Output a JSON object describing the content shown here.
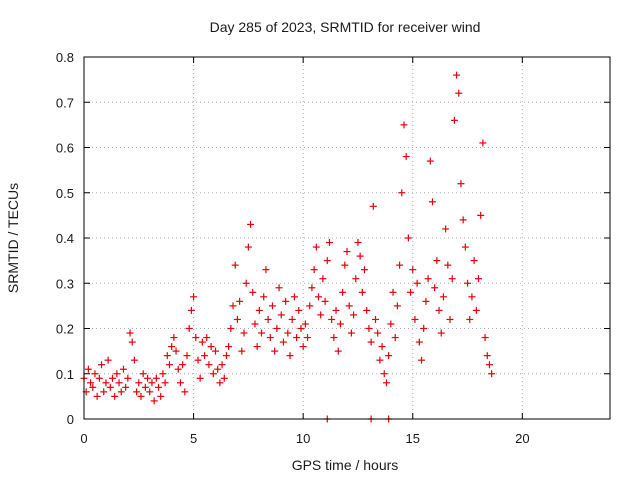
{
  "chart_data": {
    "type": "scatter",
    "title": "Day 285 of 2023, SRMTID for receiver wind",
    "xlabel": "GPS time / hours",
    "ylabel": "SRMTID / TECUs",
    "xlim": [
      0,
      24
    ],
    "ylim": [
      0,
      0.8
    ],
    "xticks": [
      0,
      5,
      10,
      15,
      20
    ],
    "xtick_labels": [
      "0",
      "5",
      "10",
      "15",
      "20"
    ],
    "yticks": [
      0,
      0.1,
      0.2,
      0.3,
      0.4,
      0.5,
      0.6,
      0.7,
      0.8
    ],
    "ytick_labels": [
      "0",
      "0.1",
      "0.2",
      "0.3",
      "0.4",
      "0.5",
      "0.6",
      "0.7",
      "0.8"
    ],
    "grid": true,
    "marker": "plus",
    "color": "#e8000b",
    "series": [
      {
        "name": "SRMTID",
        "points": [
          [
            0.0,
            0.09
          ],
          [
            0.1,
            0.06
          ],
          [
            0.2,
            0.11
          ],
          [
            0.3,
            0.08
          ],
          [
            0.4,
            0.07
          ],
          [
            0.5,
            0.1
          ],
          [
            0.6,
            0.05
          ],
          [
            0.7,
            0.09
          ],
          [
            0.8,
            0.12
          ],
          [
            0.9,
            0.06
          ],
          [
            1.0,
            0.08
          ],
          [
            1.1,
            0.13
          ],
          [
            1.2,
            0.07
          ],
          [
            1.3,
            0.09
          ],
          [
            1.4,
            0.05
          ],
          [
            1.5,
            0.1
          ],
          [
            1.6,
            0.08
          ],
          [
            1.7,
            0.06
          ],
          [
            1.8,
            0.11
          ],
          [
            1.9,
            0.07
          ],
          [
            2.0,
            0.09
          ],
          [
            2.1,
            0.19
          ],
          [
            2.2,
            0.17
          ],
          [
            2.3,
            0.13
          ],
          [
            2.4,
            0.06
          ],
          [
            2.5,
            0.08
          ],
          [
            2.6,
            0.05
          ],
          [
            2.7,
            0.1
          ],
          [
            2.8,
            0.07
          ],
          [
            2.9,
            0.09
          ],
          [
            3.0,
            0.06
          ],
          [
            3.1,
            0.08
          ],
          [
            3.2,
            0.04
          ],
          [
            3.3,
            0.09
          ],
          [
            3.4,
            0.07
          ],
          [
            3.5,
            0.05
          ],
          [
            3.6,
            0.1
          ],
          [
            3.7,
            0.08
          ],
          [
            3.8,
            0.14
          ],
          [
            3.9,
            0.12
          ],
          [
            4.0,
            0.16
          ],
          [
            4.1,
            0.18
          ],
          [
            4.2,
            0.15
          ],
          [
            4.3,
            0.11
          ],
          [
            4.4,
            0.08
          ],
          [
            4.5,
            0.12
          ],
          [
            4.6,
            0.06
          ],
          [
            4.7,
            0.14
          ],
          [
            4.8,
            0.2
          ],
          [
            4.9,
            0.24
          ],
          [
            5.0,
            0.27
          ],
          [
            5.1,
            0.18
          ],
          [
            5.2,
            0.13
          ],
          [
            5.3,
            0.09
          ],
          [
            5.4,
            0.17
          ],
          [
            5.5,
            0.14
          ],
          [
            5.6,
            0.18
          ],
          [
            5.7,
            0.12
          ],
          [
            5.8,
            0.16
          ],
          [
            5.9,
            0.1
          ],
          [
            6.0,
            0.15
          ],
          [
            6.1,
            0.11
          ],
          [
            6.2,
            0.08
          ],
          [
            6.3,
            0.12
          ],
          [
            6.4,
            0.09
          ],
          [
            6.5,
            0.14
          ],
          [
            6.6,
            0.16
          ],
          [
            6.7,
            0.2
          ],
          [
            6.8,
            0.25
          ],
          [
            6.9,
            0.34
          ],
          [
            7.0,
            0.22
          ],
          [
            7.1,
            0.26
          ],
          [
            7.2,
            0.15
          ],
          [
            7.3,
            0.19
          ],
          [
            7.4,
            0.3
          ],
          [
            7.5,
            0.38
          ],
          [
            7.6,
            0.43
          ],
          [
            7.7,
            0.28
          ],
          [
            7.8,
            0.21
          ],
          [
            7.9,
            0.16
          ],
          [
            8.0,
            0.24
          ],
          [
            8.1,
            0.19
          ],
          [
            8.2,
            0.27
          ],
          [
            8.3,
            0.33
          ],
          [
            8.4,
            0.22
          ],
          [
            8.5,
            0.18
          ],
          [
            8.6,
            0.25
          ],
          [
            8.7,
            0.15
          ],
          [
            8.8,
            0.2
          ],
          [
            8.9,
            0.29
          ],
          [
            9.0,
            0.23
          ],
          [
            9.1,
            0.17
          ],
          [
            9.2,
            0.26
          ],
          [
            9.3,
            0.19
          ],
          [
            9.4,
            0.14
          ],
          [
            9.5,
            0.22
          ],
          [
            9.6,
            0.27
          ],
          [
            9.7,
            0.18
          ],
          [
            9.8,
            0.24
          ],
          [
            9.9,
            0.2
          ],
          [
            10.0,
            0.16
          ],
          [
            10.1,
            0.21
          ],
          [
            10.2,
            0.18
          ],
          [
            10.3,
            0.25
          ],
          [
            10.4,
            0.29
          ],
          [
            10.5,
            0.33
          ],
          [
            10.6,
            0.38
          ],
          [
            10.7,
            0.27
          ],
          [
            10.8,
            0.23
          ],
          [
            10.9,
            0.31
          ],
          [
            11.0,
            0.26
          ],
          [
            11.1,
            0.35
          ],
          [
            11.2,
            0.39
          ],
          [
            11.3,
            0.22
          ],
          [
            11.4,
            0.18
          ],
          [
            11.5,
            0.24
          ],
          [
            11.6,
            0.15
          ],
          [
            11.7,
            0.21
          ],
          [
            11.8,
            0.28
          ],
          [
            11.9,
            0.34
          ],
          [
            12.0,
            0.37
          ],
          [
            12.1,
            0.25
          ],
          [
            12.2,
            0.19
          ],
          [
            12.3,
            0.23
          ],
          [
            12.4,
            0.31
          ],
          [
            12.5,
            0.39
          ],
          [
            12.6,
            0.36
          ],
          [
            12.7,
            0.28
          ],
          [
            12.8,
            0.33
          ],
          [
            12.9,
            0.24
          ],
          [
            13.0,
            0.2
          ],
          [
            13.1,
            0.17
          ],
          [
            13.2,
            0.47
          ],
          [
            13.3,
            0.22
          ],
          [
            13.4,
            0.19
          ],
          [
            13.5,
            0.13
          ],
          [
            13.6,
            0.16
          ],
          [
            13.7,
            0.1
          ],
          [
            13.8,
            0.08
          ],
          [
            13.9,
            0.14
          ],
          [
            14.0,
            0.21
          ],
          [
            14.1,
            0.28
          ],
          [
            14.2,
            0.18
          ],
          [
            14.3,
            0.25
          ],
          [
            14.4,
            0.34
          ],
          [
            14.5,
            0.5
          ],
          [
            14.6,
            0.65
          ],
          [
            14.7,
            0.58
          ],
          [
            14.8,
            0.4
          ],
          [
            14.9,
            0.28
          ],
          [
            15.0,
            0.33
          ],
          [
            15.1,
            0.22
          ],
          [
            15.2,
            0.3
          ],
          [
            15.3,
            0.17
          ],
          [
            15.4,
            0.13
          ],
          [
            15.5,
            0.2
          ],
          [
            15.6,
            0.26
          ],
          [
            15.7,
            0.31
          ],
          [
            15.8,
            0.57
          ],
          [
            15.9,
            0.48
          ],
          [
            16.0,
            0.29
          ],
          [
            16.1,
            0.35
          ],
          [
            16.2,
            0.24
          ],
          [
            16.3,
            0.19
          ],
          [
            16.4,
            0.27
          ],
          [
            16.5,
            0.42
          ],
          [
            16.6,
            0.34
          ],
          [
            16.7,
            0.22
          ],
          [
            16.8,
            0.31
          ],
          [
            16.9,
            0.66
          ],
          [
            17.0,
            0.76
          ],
          [
            17.1,
            0.72
          ],
          [
            17.2,
            0.52
          ],
          [
            17.3,
            0.44
          ],
          [
            17.4,
            0.38
          ],
          [
            17.5,
            0.3
          ],
          [
            17.6,
            0.22
          ],
          [
            17.7,
            0.27
          ],
          [
            17.8,
            0.35
          ],
          [
            17.9,
            0.24
          ],
          [
            18.0,
            0.31
          ],
          [
            18.1,
            0.45
          ],
          [
            18.2,
            0.61
          ],
          [
            18.3,
            0.18
          ],
          [
            18.4,
            0.14
          ],
          [
            18.5,
            0.12
          ],
          [
            18.6,
            0.1
          ],
          [
            11.1,
            0.0
          ],
          [
            13.1,
            0.0
          ],
          [
            13.9,
            0.0
          ]
        ]
      }
    ]
  }
}
